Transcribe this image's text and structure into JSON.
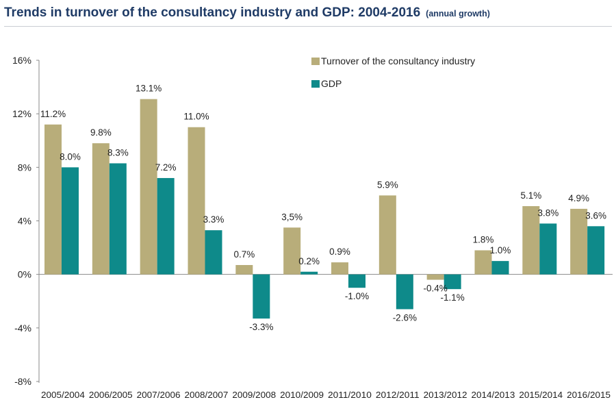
{
  "title": "Trends in turnover of the consultancy industry and GDP: 2004-2016",
  "subtitle": "(annual growth)",
  "colors": {
    "turnover": "#b8ad7a",
    "gdp": "#0e8a8a",
    "title": "#1f3b66",
    "axis": "#888888"
  },
  "chart_data": {
    "type": "bar",
    "title": "Trends in turnover of the consultancy industry and GDP: 2004-2016",
    "subtitle": "(annual growth)",
    "xlabel": "",
    "ylabel": "",
    "ylim": [
      -8,
      16
    ],
    "yticks": [
      16,
      12,
      8,
      4,
      0,
      -4,
      -8
    ],
    "ytick_labels": [
      "16%",
      "12%",
      "8%",
      "4%",
      "0%",
      "-4%",
      "-8%"
    ],
    "grid": false,
    "legend_position": "top-right",
    "categories": [
      "2005/2004",
      "2006/2005",
      "2007/2006",
      "2008/2007",
      "2009/2008",
      "2010/2009",
      "2011/2010",
      "2012/2011",
      "2013/2012",
      "2014/2013",
      "2015/2014",
      "2016/2015"
    ],
    "series": [
      {
        "name": "Turnover of the consultancy industry",
        "key": "turnover",
        "values": [
          11.2,
          9.8,
          13.1,
          11.0,
          0.7,
          3.5,
          0.9,
          5.9,
          -0.4,
          1.8,
          5.1,
          4.9
        ],
        "labels": [
          "11.2%",
          "9.8%",
          "13.1%",
          "11.0%",
          "0.7%",
          "3,5%",
          "0.9%",
          "5.9%",
          "-0.4%",
          "1.8%",
          "5.1%",
          "4.9%"
        ]
      },
      {
        "name": "GDP",
        "key": "gdp",
        "values": [
          8.0,
          8.3,
          7.2,
          3.3,
          -3.3,
          0.2,
          -1.0,
          -2.6,
          -1.1,
          1.0,
          3.8,
          3.6
        ],
        "labels": [
          "8.0%",
          "8.3%",
          "7.2%",
          "3.3%",
          "-3.3%",
          "0.2%",
          "-1.0%",
          "-2.6%",
          "-1.1%",
          "1.0%",
          "3.8%",
          "3.6%"
        ]
      }
    ]
  }
}
